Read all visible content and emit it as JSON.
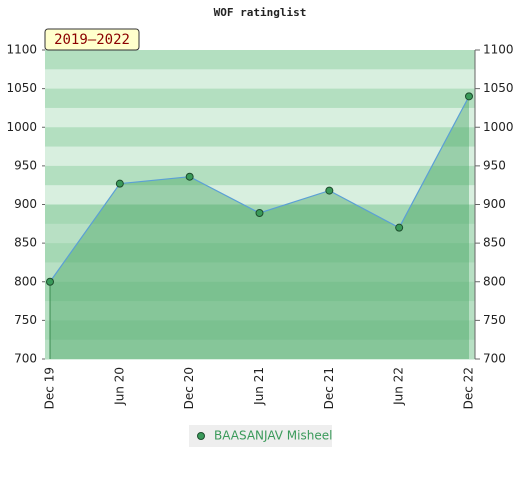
{
  "chart_data": {
    "type": "area",
    "title": "WOF ratinglist",
    "badge": "2019–2022",
    "categories": [
      "Dec 19",
      "Jun 20",
      "Dec 20",
      "Jun 21",
      "Dec 21",
      "Jun 22",
      "Dec 22"
    ],
    "series": [
      {
        "name": "BAASANJAV Misheel",
        "color": "#5b9fd6",
        "values": [
          800,
          927,
          936,
          889,
          918,
          870,
          1040
        ]
      }
    ],
    "ylim": [
      700,
      1100
    ],
    "yticks": [
      700,
      750,
      800,
      850,
      900,
      950,
      1000,
      1050,
      1100
    ],
    "y2lim": [
      700,
      1100
    ],
    "y2ticks": [
      700,
      750,
      800,
      850,
      900,
      950,
      1000,
      1050,
      1100
    ]
  }
}
